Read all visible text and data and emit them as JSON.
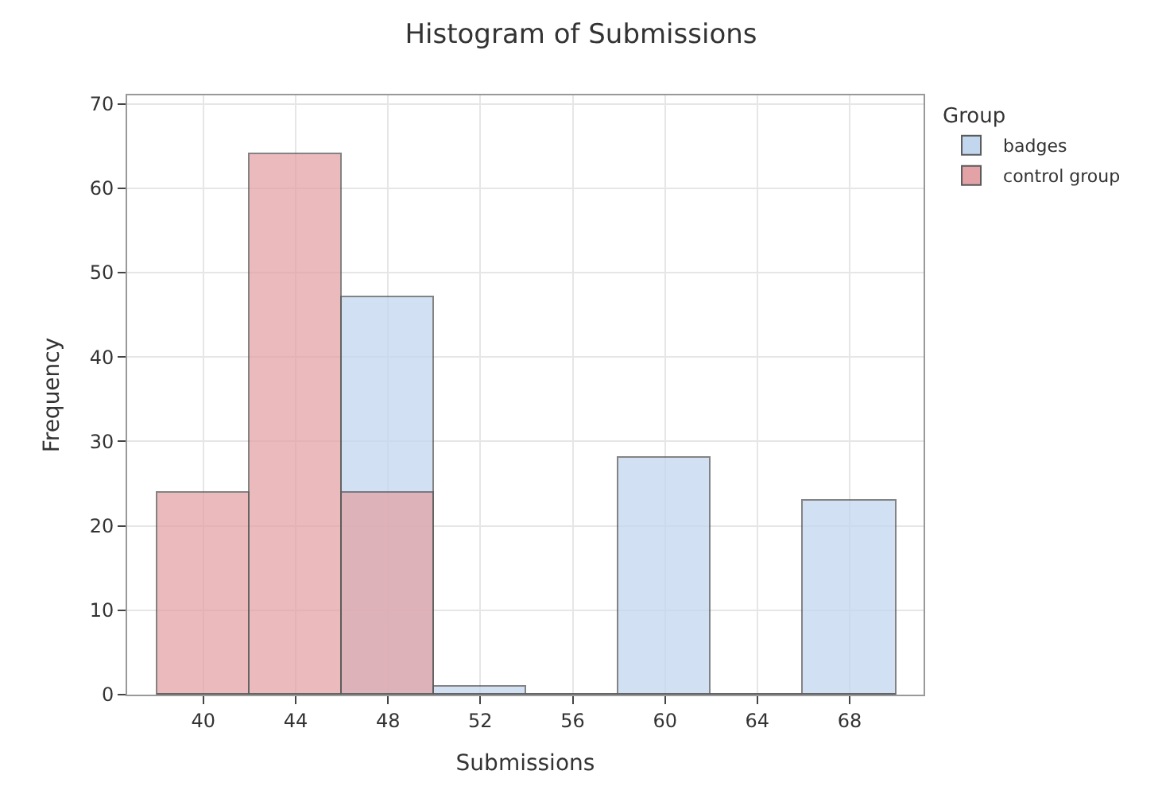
{
  "chart_data": {
    "type": "histogram",
    "title": "Histogram of Submissions",
    "xlabel": "Submissions",
    "ylabel": "Frequency",
    "legend_title": "Group",
    "bins": [
      38,
      42,
      46,
      50,
      54,
      58,
      62,
      66,
      70
    ],
    "series": [
      {
        "name": "badges",
        "color": "#c2d6ee",
        "values": [
          0,
          0,
          47,
          1,
          0,
          28,
          0,
          23
        ]
      },
      {
        "name": "control group",
        "color": "#e3a3a6",
        "values": [
          24,
          64,
          24,
          0,
          0,
          0,
          0,
          0
        ]
      }
    ],
    "xlim": [
      36.7,
      71.2
    ],
    "xticks": [
      40,
      44,
      48,
      52,
      56,
      60,
      64,
      68
    ],
    "ylim": [
      0,
      71
    ],
    "yticks": [
      0,
      10,
      20,
      30,
      40,
      50,
      60,
      70
    ],
    "grid": true,
    "legend": "top right"
  }
}
